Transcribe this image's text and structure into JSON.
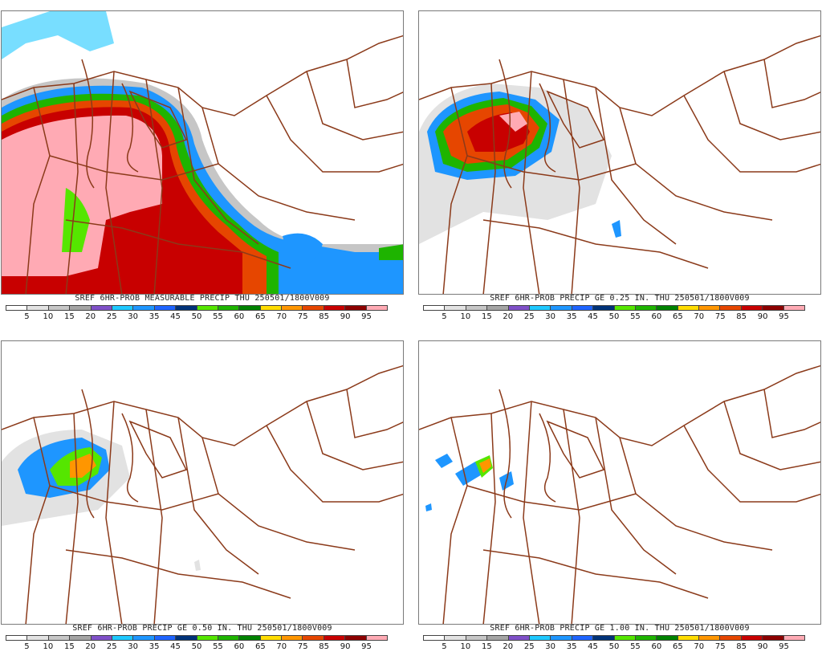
{
  "panels": [
    {
      "title": "SREF 6HR-PROB MEASURABLE PRECIP THU 250501/1800V009",
      "field": "measurable precip probability",
      "coverage": "very broad, covering Great Lakes, Ohio Valley and Mid-Atlantic"
    },
    {
      "title": "SREF 6HR-PROB PRECIP GE 0.25 IN. THU 250501/1800V009",
      "field": "precip >= 0.25 in probability",
      "coverage": "centered over northern Lake Michigan / Wisconsin"
    },
    {
      "title": "SREF 6HR-PROB PRECIP GE 0.50 IN. THU 250501/1800V009",
      "field": "precip >= 0.50 in probability",
      "coverage": "small area over northern Lake Michigan"
    },
    {
      "title": "SREF 6HR-PROB PRECIP GE 1.00 IN. THU 250501/1800V009",
      "field": "precip >= 1.00 in probability",
      "coverage": "small patches near northern Lake Michigan"
    }
  ],
  "legend": {
    "labels": [
      "5",
      "10",
      "15",
      "20",
      "25",
      "30",
      "35",
      "45",
      "50",
      "55",
      "60",
      "65",
      "70",
      "75",
      "85",
      "90",
      "95"
    ],
    "colors": [
      "#ffffff",
      "#e2e2e2",
      "#c6c6c6",
      "#a4a4a4",
      "#7f50c8",
      "#1ec8ff",
      "#1e96ff",
      "#1e64ff",
      "#003278",
      "#55e600",
      "#1eb400",
      "#008200",
      "#ffdc00",
      "#ff9600",
      "#e64600",
      "#c80000",
      "#8c0000",
      "#ffaab4"
    ]
  },
  "colors": {
    "border": "#8b3a1a",
    "frame": "#7a7a7a"
  }
}
